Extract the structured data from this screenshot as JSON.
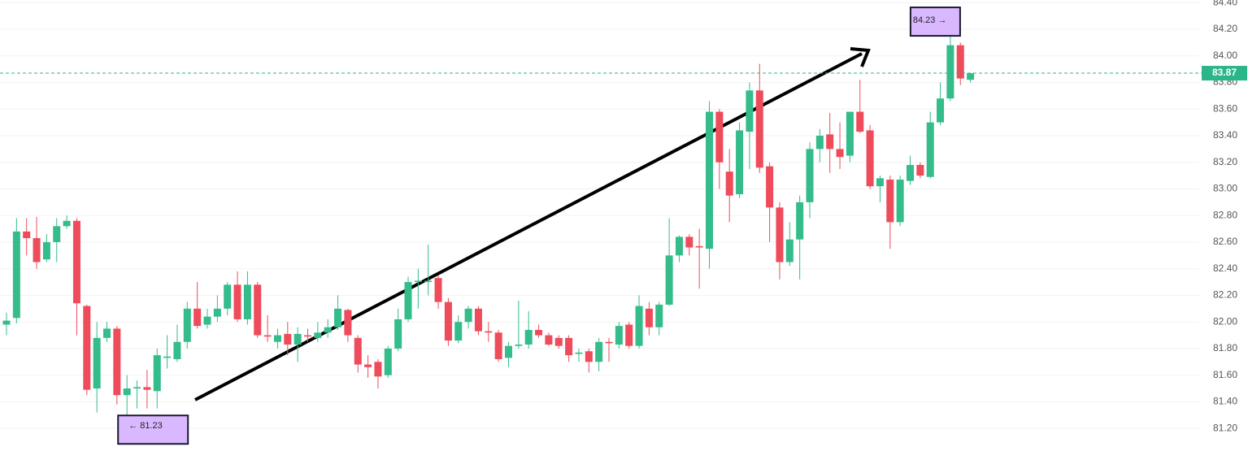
{
  "chart_data": {
    "type": "candlestick",
    "up_color": "#34bc8b",
    "down_color": "#ee4b5b",
    "open": [
      81.98,
      82.03,
      82.68,
      82.63,
      82.47,
      82.6,
      82.72,
      82.76,
      82.12,
      81.5,
      81.88,
      81.95,
      81.45,
      81.5,
      81.51,
      81.48,
      81.73,
      81.72,
      81.85,
      82.1,
      81.98,
      82.04,
      82.1,
      82.28,
      82.02,
      82.28,
      81.9,
      81.85,
      81.91,
      81.83,
      81.9,
      81.88,
      81.92,
      81.96,
      82.09,
      81.88,
      81.68,
      81.7,
      81.6,
      81.8,
      82.02,
      82.3,
      82.3,
      82.33,
      82.15,
      81.86,
      82.0,
      82.1,
      81.93,
      81.92,
      81.73,
      81.82,
      81.83,
      81.94,
      81.9,
      81.88,
      81.88,
      81.76,
      81.78,
      81.7,
      81.85,
      81.83,
      81.98,
      81.82,
      82.1,
      81.96,
      82.13,
      82.5,
      82.64,
      82.57,
      82.55,
      83.58,
      83.13,
      82.96,
      83.43,
      83.74,
      83.17,
      82.86,
      82.45,
      82.62,
      82.9,
      83.3,
      83.41,
      83.3,
      83.25,
      83.58,
      83.44,
      83.02,
      83.07,
      82.75,
      83.06,
      83.18,
      83.09,
      83.5,
      83.68,
      84.08,
      83.82
    ],
    "high": [
      82.07,
      82.78,
      82.78,
      82.79,
      82.66,
      82.78,
      82.8,
      82.78,
      82.13,
      82.0,
      82.0,
      81.97,
      81.6,
      81.56,
      81.64,
      81.8,
      81.9,
      81.98,
      82.15,
      82.3,
      82.1,
      82.2,
      82.3,
      82.38,
      82.38,
      82.3,
      82.05,
      81.95,
      82.0,
      81.96,
      81.95,
      82.0,
      82.02,
      82.2,
      82.1,
      81.9,
      81.75,
      81.72,
      81.82,
      82.1,
      82.34,
      82.4,
      82.58,
      82.35,
      82.18,
      82.05,
      82.12,
      82.12,
      82.0,
      81.94,
      81.85,
      82.16,
      82.08,
      81.98,
      81.92,
      81.9,
      81.9,
      81.8,
      81.8,
      81.88,
      81.88,
      82.0,
      82.0,
      82.2,
      82.15,
      82.15,
      82.78,
      82.65,
      82.66,
      82.7,
      83.66,
      83.6,
      83.3,
      83.5,
      83.8,
      83.94,
      83.2,
      82.9,
      82.75,
      82.95,
      83.35,
      83.45,
      83.57,
      83.5,
      83.58,
      83.82,
      83.48,
      83.1,
      83.1,
      83.1,
      83.25,
      83.2,
      83.58,
      83.8,
      84.23,
      84.1,
      83.87
    ],
    "low": [
      81.9,
      81.99,
      82.5,
      82.4,
      82.45,
      82.45,
      82.7,
      81.9,
      81.45,
      81.32,
      81.85,
      81.38,
      81.23,
      81.35,
      81.35,
      81.35,
      81.65,
      81.7,
      81.8,
      81.95,
      81.95,
      82.0,
      82.05,
      82.0,
      81.98,
      81.88,
      81.85,
      81.8,
      81.75,
      81.7,
      81.85,
      81.85,
      81.88,
      81.94,
      81.85,
      81.62,
      81.58,
      81.5,
      81.58,
      81.78,
      82.0,
      82.1,
      82.2,
      82.1,
      81.82,
      81.84,
      81.95,
      81.9,
      81.85,
      81.7,
      81.66,
      81.8,
      81.8,
      81.88,
      81.82,
      81.8,
      81.7,
      81.7,
      81.62,
      81.63,
      81.7,
      81.8,
      81.8,
      81.8,
      81.9,
      81.9,
      82.12,
      82.45,
      82.5,
      82.25,
      82.4,
      83.0,
      82.75,
      82.93,
      83.15,
      83.12,
      82.6,
      82.32,
      82.42,
      82.32,
      82.78,
      83.2,
      83.12,
      83.15,
      83.2,
      83.42,
      83.0,
      82.9,
      82.55,
      82.72,
      83.03,
      83.08,
      83.08,
      83.48,
      83.66,
      83.78,
      83.8
    ],
    "close": [
      82.01,
      82.68,
      82.63,
      82.45,
      82.6,
      82.72,
      82.76,
      82.14,
      81.49,
      81.88,
      81.95,
      81.45,
      81.5,
      81.51,
      81.49,
      81.75,
      81.74,
      81.85,
      82.1,
      81.97,
      82.04,
      82.1,
      82.28,
      82.02,
      82.28,
      81.9,
      81.89,
      81.9,
      81.83,
      81.91,
      81.89,
      81.92,
      81.96,
      82.1,
      81.9,
      81.68,
      81.66,
      81.59,
      81.8,
      82.02,
      82.3,
      82.31,
      82.31,
      82.15,
      81.86,
      82.0,
      82.1,
      81.93,
      81.92,
      81.72,
      81.82,
      81.83,
      81.94,
      81.9,
      81.83,
      81.82,
      81.75,
      81.77,
      81.7,
      81.85,
      81.84,
      81.97,
      81.82,
      82.12,
      81.96,
      82.13,
      82.5,
      82.64,
      82.56,
      82.56,
      83.58,
      83.2,
      82.95,
      83.44,
      83.74,
      83.16,
      82.86,
      82.45,
      82.62,
      82.9,
      83.3,
      83.4,
      83.3,
      83.24,
      83.58,
      83.43,
      83.02,
      83.08,
      82.75,
      83.07,
      83.18,
      83.1,
      83.5,
      83.68,
      84.08,
      83.83,
      83.87
    ],
    "ylim": [
      81.03,
      84.42
    ],
    "yticks": [
      {
        "value": 81.2,
        "label": "81.20"
      },
      {
        "value": 81.4,
        "label": "81.40"
      },
      {
        "value": 81.6,
        "label": "81.60"
      },
      {
        "value": 81.8,
        "label": "81.80"
      },
      {
        "value": 82.0,
        "label": "82.00"
      },
      {
        "value": 82.2,
        "label": "82.20"
      },
      {
        "value": 82.4,
        "label": "82.40"
      },
      {
        "value": 82.6,
        "label": "82.60"
      },
      {
        "value": 82.8,
        "label": "82.80"
      },
      {
        "value": 83.0,
        "label": "83.00"
      },
      {
        "value": 83.2,
        "label": "83.20"
      },
      {
        "value": 83.4,
        "label": "83.40"
      },
      {
        "value": 83.6,
        "label": "83.60"
      },
      {
        "value": 83.8,
        "label": "83.80"
      },
      {
        "value": 84.0,
        "label": "84.00"
      },
      {
        "value": 84.2,
        "label": "84.20"
      },
      {
        "value": 84.4,
        "label": "84.40"
      }
    ],
    "grid": true,
    "current_price": 83.87,
    "current_price_color": "#2bb58a",
    "annotations": [
      {
        "text": "← 81.23",
        "value": 81.23,
        "candle": 12
      },
      {
        "text": "84.23 →",
        "value": 84.23,
        "candle": 94
      }
    ]
  }
}
